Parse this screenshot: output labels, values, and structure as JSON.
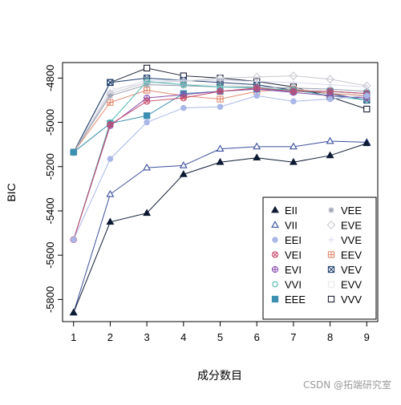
{
  "chart_data": {
    "type": "line",
    "xlabel": "成分数目",
    "ylabel": "BIC",
    "x": [
      1,
      2,
      3,
      4,
      5,
      6,
      7,
      8,
      9
    ],
    "xlim": [
      0.7,
      9.3
    ],
    "ylim": [
      -5900,
      -4730
    ],
    "xticks": [
      "1",
      "2",
      "3",
      "4",
      "5",
      "6",
      "7",
      "8",
      "9"
    ],
    "yticks": [
      -4800,
      -5000,
      -5200,
      -5400,
      -5600,
      -5800
    ],
    "ytick_labels": [
      "-4800",
      "-5000",
      "-5200",
      "-5400",
      "-5600",
      "-5800"
    ],
    "grid": false,
    "legend_placement": "bottom-right",
    "series": [
      {
        "name": "EII",
        "marker": "triangle-filled",
        "color": "#0d1a33",
        "line": "solid",
        "values": [
          -5860,
          -5450,
          -5410,
          -5235,
          -5180,
          -5160,
          -5180,
          -5150,
          -5095
        ]
      },
      {
        "name": "VII",
        "marker": "triangle-open",
        "color": "#3a4f9c",
        "line": "solid",
        "values": [
          -5860,
          -5325,
          -5205,
          -5195,
          -5120,
          -5110,
          -5110,
          -5085,
          -5090
        ]
      },
      {
        "name": "EEI",
        "marker": "circle-filled",
        "color": "#a9b7e8",
        "line": "solid",
        "values": [
          -5530,
          -5165,
          -5000,
          -4935,
          -4930,
          -4880,
          -4905,
          -4895,
          -4880
        ]
      },
      {
        "name": "VEI",
        "marker": "x-circle",
        "color": "#c84a6a",
        "line": "solid",
        "values": [
          -5530,
          -5010,
          -4905,
          -4890,
          -4860,
          -4845,
          -4860,
          -4860,
          -4870
        ]
      },
      {
        "name": "EVI",
        "marker": "plus-circle",
        "color": "#8a4fb0",
        "line": "solid",
        "values": [
          -5530,
          -5015,
          -4890,
          -4875,
          -4860,
          -4850,
          -4865,
          -4880,
          -4890
        ]
      },
      {
        "name": "VVI",
        "marker": "circle-open",
        "color": "#4bb8b0",
        "line": "solid",
        "values": [
          -5530,
          -5000,
          -4815,
          -4830,
          -4840,
          -4845,
          -4855,
          -4880,
          -4900
        ]
      },
      {
        "name": "EEE",
        "marker": "square-filled",
        "color": "#3b8fb0",
        "line": "solid",
        "values": [
          -5135,
          -5005,
          -4970,
          -4870,
          -4860,
          -4850,
          -4860,
          -4860,
          -4870
        ]
      },
      {
        "name": "VEE",
        "marker": "asterisk",
        "color": "#9aa0b0",
        "line": "solid",
        "values": [
          -5135,
          -4880,
          -4830,
          -4835,
          -4840,
          -4840,
          -4845,
          -4850,
          -4860
        ]
      },
      {
        "name": "EVE",
        "marker": "diamond-open",
        "color": "#c8c8d0",
        "line": "solid",
        "values": [
          -5135,
          -4870,
          -4820,
          -4815,
          -4800,
          -4795,
          -4790,
          -4805,
          -4835
        ]
      },
      {
        "name": "VVE",
        "marker": "plus",
        "color": "#d8d8ee",
        "line": "solid",
        "values": [
          -5135,
          -4860,
          -4810,
          -4810,
          -4810,
          -4815,
          -4820,
          -4830,
          -4840
        ]
      },
      {
        "name": "EEV",
        "marker": "square-plus",
        "color": "#e08a70",
        "line": "solid",
        "values": [
          -5135,
          -4910,
          -4855,
          -4880,
          -4895,
          -4860,
          -4850,
          -4870,
          -4880
        ]
      },
      {
        "name": "VEV",
        "marker": "square-x",
        "color": "#1e3f6e",
        "line": "solid",
        "values": [
          -5135,
          -4820,
          -4800,
          -4810,
          -4820,
          -4830,
          -4855,
          -4870,
          -4900
        ]
      },
      {
        "name": "EVV",
        "marker": "square-open",
        "color": "#e6e6ea",
        "line": "solid",
        "values": [
          -5135,
          -4850,
          -4825,
          -4830,
          -4830,
          -4840,
          -4850,
          -4860,
          -4880
        ]
      },
      {
        "name": "VVV",
        "marker": "square-open",
        "color": "#1a2033",
        "line": "solid",
        "values": [
          -5135,
          -4820,
          -4755,
          -4790,
          -4800,
          -4815,
          -4840,
          -4885,
          -4940
        ]
      }
    ]
  },
  "watermark": "CSDN @拓端研究室"
}
